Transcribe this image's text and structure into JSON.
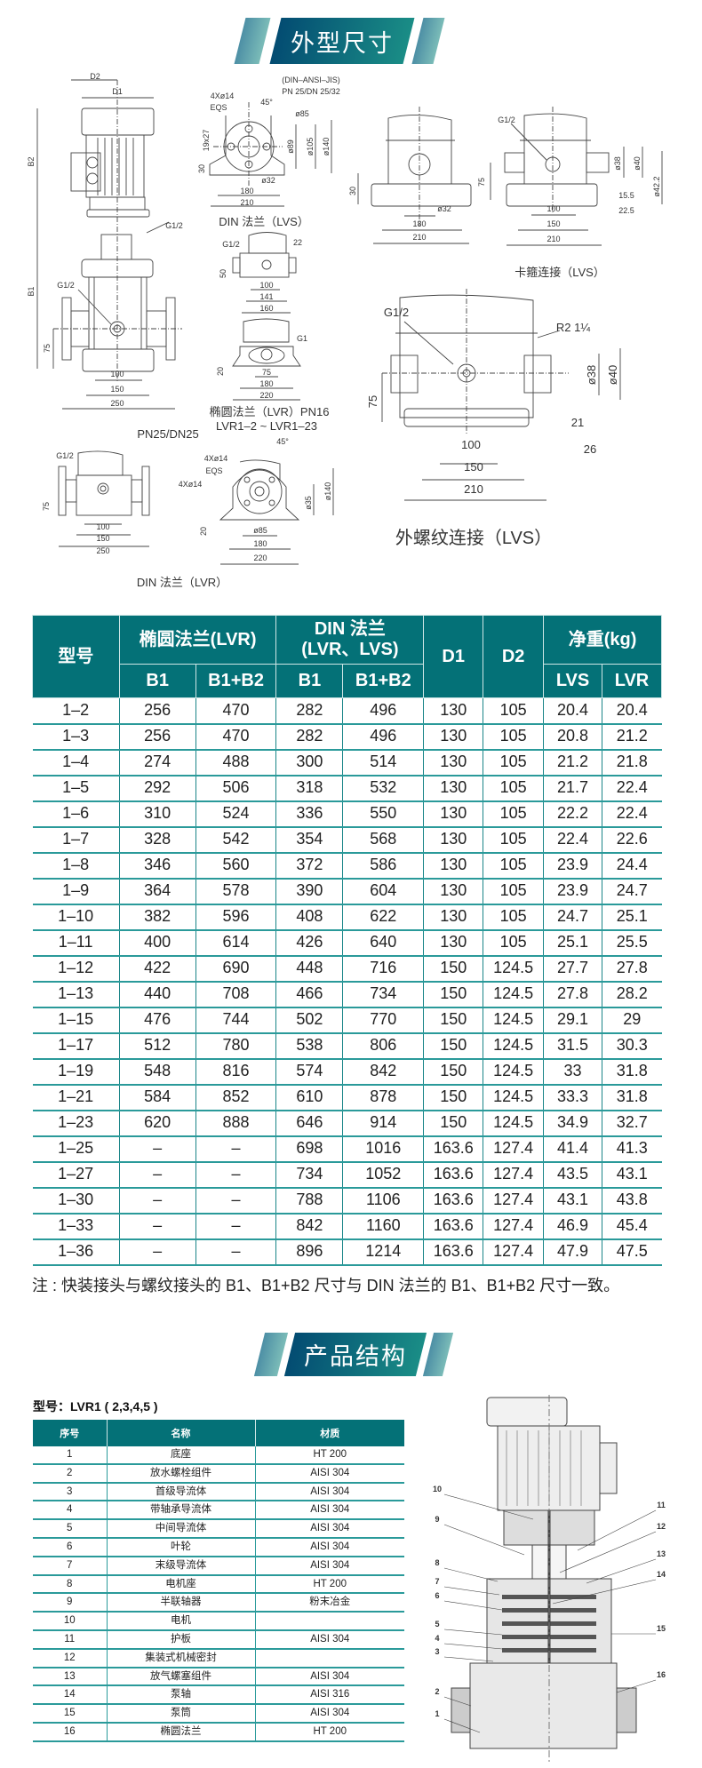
{
  "section1": {
    "title": "外型尺寸"
  },
  "drawings": {
    "main_pump": {
      "caption": "PN25/DN25",
      "labels": [
        "D2",
        "D1",
        "B2",
        "B1",
        "G1/2",
        "G1/2",
        "75",
        "100",
        "150",
        "250"
      ]
    },
    "din_lvs": {
      "caption": "DIN  法兰（LVS）",
      "labels": [
        "(DIN–ANSI–JIS)",
        "PN 25/DN 25/32",
        "4Xø14",
        "EQS",
        "45°",
        "ø85",
        "ø89",
        "ø105",
        "ø140",
        "19x27",
        "30",
        "ø32",
        "180",
        "210"
      ]
    },
    "lvr_flange": {
      "labels": [
        "G1/2",
        "22",
        "50",
        "100",
        "141",
        "160"
      ]
    },
    "elliptic_lvr": {
      "caption_line1": "椭圆法兰（LVR）PN16",
      "caption_line2": "LVR1–2 ~ LVR1–23",
      "labels": [
        "G1",
        "20",
        "75",
        "180",
        "220"
      ]
    },
    "clamp_lvs": {
      "caption": "卡箍连接（LVS）",
      "labels": [
        "30",
        "ø32",
        "180",
        "210",
        "G1/2",
        "75",
        "ø38",
        "ø40",
        "ø42.2",
        "15.5",
        "22.5",
        "100",
        "150",
        "210"
      ]
    },
    "thread_lvs": {
      "caption": "外螺纹连接（LVS）",
      "labels": [
        "G1/2",
        "R2 1¼",
        "ø38",
        "ø40",
        "75",
        "21",
        "26",
        "100",
        "150",
        "210"
      ]
    },
    "din_lvr": {
      "caption": "DIN 法兰（LVR）",
      "labels": [
        "G1/2",
        "75",
        "100",
        "150",
        "250",
        "4Xø14",
        "EQS",
        "4Xø14",
        "45°",
        "ø140",
        "ø35",
        "20",
        "ø85",
        "180",
        "220"
      ]
    }
  },
  "spec_table": {
    "headers": {
      "model": "型号",
      "elliptic": "椭圆法兰(LVR)",
      "din_line1": "DIN 法兰",
      "din_line2": "(LVR、LVS)",
      "d1": "D1",
      "d2": "D2",
      "weight": "净重(kg)",
      "b1": "B1",
      "b1b2": "B1+B2",
      "lvs": "LVS",
      "lvr": "LVR"
    },
    "rows": [
      [
        "1–2",
        "256",
        "470",
        "282",
        "496",
        "130",
        "105",
        "20.4",
        "20.4"
      ],
      [
        "1–3",
        "256",
        "470",
        "282",
        "496",
        "130",
        "105",
        "20.8",
        "21.2"
      ],
      [
        "1–4",
        "274",
        "488",
        "300",
        "514",
        "130",
        "105",
        "21.2",
        "21.8"
      ],
      [
        "1–5",
        "292",
        "506",
        "318",
        "532",
        "130",
        "105",
        "21.7",
        "22.4"
      ],
      [
        "1–6",
        "310",
        "524",
        "336",
        "550",
        "130",
        "105",
        "22.2",
        "22.4"
      ],
      [
        "1–7",
        "328",
        "542",
        "354",
        "568",
        "130",
        "105",
        "22.4",
        "22.6"
      ],
      [
        "1–8",
        "346",
        "560",
        "372",
        "586",
        "130",
        "105",
        "23.9",
        "24.4"
      ],
      [
        "1–9",
        "364",
        "578",
        "390",
        "604",
        "130",
        "105",
        "23.9",
        "24.7"
      ],
      [
        "1–10",
        "382",
        "596",
        "408",
        "622",
        "130",
        "105",
        "24.7",
        "25.1"
      ],
      [
        "1–11",
        "400",
        "614",
        "426",
        "640",
        "130",
        "105",
        "25.1",
        "25.5"
      ],
      [
        "1–12",
        "422",
        "690",
        "448",
        "716",
        "150",
        "124.5",
        "27.7",
        "27.8"
      ],
      [
        "1–13",
        "440",
        "708",
        "466",
        "734",
        "150",
        "124.5",
        "27.8",
        "28.2"
      ],
      [
        "1–15",
        "476",
        "744",
        "502",
        "770",
        "150",
        "124.5",
        "29.1",
        "29"
      ],
      [
        "1–17",
        "512",
        "780",
        "538",
        "806",
        "150",
        "124.5",
        "31.5",
        "30.3"
      ],
      [
        "1–19",
        "548",
        "816",
        "574",
        "842",
        "150",
        "124.5",
        "33",
        "31.8"
      ],
      [
        "1–21",
        "584",
        "852",
        "610",
        "878",
        "150",
        "124.5",
        "33.3",
        "31.8"
      ],
      [
        "1–23",
        "620",
        "888",
        "646",
        "914",
        "150",
        "124.5",
        "34.9",
        "32.7"
      ],
      [
        "1–25",
        "–",
        "–",
        "698",
        "1016",
        "163.6",
        "127.4",
        "41.4",
        "41.3"
      ],
      [
        "1–27",
        "–",
        "–",
        "734",
        "1052",
        "163.6",
        "127.4",
        "43.5",
        "43.1"
      ],
      [
        "1–30",
        "–",
        "–",
        "788",
        "1106",
        "163.6",
        "127.4",
        "43.1",
        "43.8"
      ],
      [
        "1–33",
        "–",
        "–",
        "842",
        "1160",
        "163.6",
        "127.4",
        "46.9",
        "45.4"
      ],
      [
        "1–36",
        "–",
        "–",
        "896",
        "1214",
        "163.6",
        "127.4",
        "47.9",
        "47.5"
      ]
    ],
    "note": "注 : 快装接头与螺纹接头的 B1、B1+B2 尺寸与 DIN 法兰的 B1、B1+B2 尺寸一致。"
  },
  "section2": {
    "title": "产品结构"
  },
  "parts": {
    "model_label": "型号：LVR1 ( 2,3,4,5 )",
    "headers": [
      "序号",
      "名称",
      "材质"
    ],
    "rows": [
      [
        "1",
        "底座",
        "HT 200"
      ],
      [
        "2",
        "放水螺栓组件",
        "AISI 304"
      ],
      [
        "3",
        "首级导流体",
        "AISI 304"
      ],
      [
        "4",
        "带轴承导流体",
        "AISI 304"
      ],
      [
        "5",
        "中间导流体",
        "AISI 304"
      ],
      [
        "6",
        "叶轮",
        "AISI 304"
      ],
      [
        "7",
        "末级导流体",
        "AISI 304"
      ],
      [
        "8",
        "电机座",
        "HT 200"
      ],
      [
        "9",
        "半联轴器",
        "粉末冶金"
      ],
      [
        "10",
        "电机",
        ""
      ],
      [
        "11",
        "护板",
        "AISI 304"
      ],
      [
        "12",
        "集装式机械密封",
        ""
      ],
      [
        "13",
        "放气螺塞组件",
        "AISI 304"
      ],
      [
        "14",
        "泵轴",
        "AISI 316"
      ],
      [
        "15",
        "泵筒",
        "AISI 304"
      ],
      [
        "16",
        "椭圆法兰",
        "HT 200"
      ]
    ],
    "callouts_left": [
      "10",
      "9",
      "8",
      "7",
      "6",
      "5",
      "4",
      "3",
      "2",
      "1"
    ],
    "callouts_right": [
      "11",
      "12",
      "13",
      "14",
      "15",
      "16"
    ]
  },
  "colors": {
    "header_teal": "#047177",
    "banner_start": "#034c72",
    "banner_end": "#1a8d86",
    "rule": "#2a9a9a"
  }
}
